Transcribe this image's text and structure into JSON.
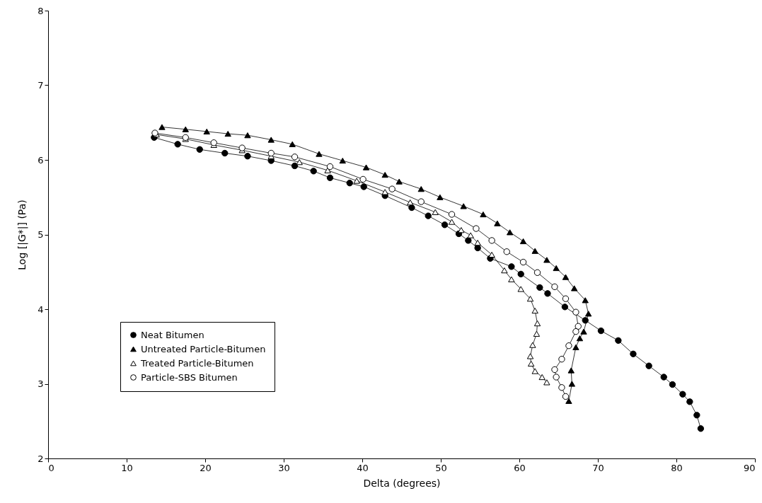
{
  "chart_data": {
    "type": "line",
    "xlabel": "Delta (degrees)",
    "ylabel": "Log [|G*|] (Pa)",
    "xlim": [
      0,
      90
    ],
    "ylim": [
      2,
      8
    ],
    "xticks": [
      0,
      10,
      20,
      30,
      40,
      50,
      60,
      70,
      80,
      90
    ],
    "yticks": [
      2,
      3,
      4,
      5,
      6,
      7,
      8
    ],
    "grid": false,
    "legend": "bottom left",
    "line_style": "solid",
    "series": [
      {
        "name": "Neat Bitumen",
        "color": "#000000",
        "marker": "circle",
        "x": [
          13.5,
          16.5,
          19.3,
          22.5,
          25.4,
          28.4,
          31.4,
          33.8,
          35.9,
          38.4,
          40.2,
          42.9,
          46.3,
          48.4,
          50.5,
          52.3,
          53.5,
          54.7,
          56.3,
          59.0,
          60.2,
          62.6,
          63.6,
          65.8,
          68.4,
          70.4,
          72.6,
          74.5,
          76.5,
          78.4,
          79.5,
          80.8,
          81.7,
          82.6,
          83.1
        ],
        "values": [
          6.3,
          6.21,
          6.14,
          6.09,
          6.05,
          5.99,
          5.92,
          5.85,
          5.76,
          5.69,
          5.64,
          5.52,
          5.36,
          5.25,
          5.13,
          5.01,
          4.92,
          4.82,
          4.68,
          4.57,
          4.47,
          4.29,
          4.21,
          4.03,
          3.85,
          3.71,
          3.58,
          3.4,
          3.24,
          3.09,
          2.99,
          2.86,
          2.76,
          2.58,
          2.4
        ]
      },
      {
        "name": "Untreated Particle-Bitumen",
        "color": "#000000",
        "marker": "triangle",
        "x": [
          14.5,
          17.5,
          20.2,
          22.9,
          25.4,
          28.4,
          31.1,
          34.5,
          37.5,
          40.5,
          42.9,
          44.7,
          47.5,
          49.9,
          52.9,
          55.4,
          57.2,
          58.8,
          60.5,
          62.0,
          63.5,
          64.7,
          65.9,
          67.0,
          68.4,
          68.8,
          68.2,
          67.7,
          67.2,
          66.6,
          66.7,
          66.3
        ],
        "values": [
          6.44,
          6.41,
          6.38,
          6.35,
          6.33,
          6.27,
          6.21,
          6.08,
          5.99,
          5.9,
          5.8,
          5.71,
          5.61,
          5.5,
          5.38,
          5.27,
          5.15,
          5.03,
          4.91,
          4.78,
          4.66,
          4.55,
          4.43,
          4.28,
          4.12,
          3.94,
          3.7,
          3.61,
          3.49,
          3.18,
          3.0,
          2.77
        ]
      },
      {
        "name": "Treated Particle-Bitumen",
        "color": "#000000",
        "marker": "triangle",
        "x": [
          13.8,
          17.5,
          21.1,
          24.7,
          28.4,
          32.0,
          35.6,
          39.3,
          42.9,
          46.1,
          49.3,
          51.4,
          52.6,
          53.8,
          54.7,
          56.5,
          58.1,
          59.0,
          60.2,
          61.4,
          62.0,
          62.3,
          62.2,
          61.7,
          61.4,
          61.5,
          62.0,
          62.9,
          63.5
        ],
        "values": [
          6.34,
          6.28,
          6.2,
          6.13,
          6.05,
          5.97,
          5.86,
          5.72,
          5.57,
          5.43,
          5.3,
          5.17,
          5.06,
          4.99,
          4.89,
          4.73,
          4.52,
          4.4,
          4.27,
          4.14,
          3.98,
          3.81,
          3.67,
          3.52,
          3.37,
          3.27,
          3.17,
          3.09,
          3.02
        ]
      },
      {
        "name": "Particle-SBS Bitumen",
        "color": "#000000",
        "marker": "circle",
        "x": [
          13.6,
          17.5,
          21.1,
          24.7,
          28.4,
          31.4,
          35.9,
          40.1,
          43.8,
          47.5,
          51.4,
          54.5,
          56.5,
          58.4,
          60.5,
          62.3,
          64.5,
          65.9,
          67.2,
          67.5,
          67.2,
          66.3,
          65.4,
          64.5,
          64.7,
          65.4,
          65.9
        ],
        "values": [
          6.36,
          6.3,
          6.23,
          6.16,
          6.09,
          6.04,
          5.91,
          5.74,
          5.61,
          5.44,
          5.27,
          5.08,
          4.92,
          4.77,
          4.63,
          4.49,
          4.3,
          4.14,
          3.96,
          3.77,
          3.7,
          3.51,
          3.33,
          3.19,
          3.09,
          2.95,
          2.83
        ]
      }
    ]
  }
}
